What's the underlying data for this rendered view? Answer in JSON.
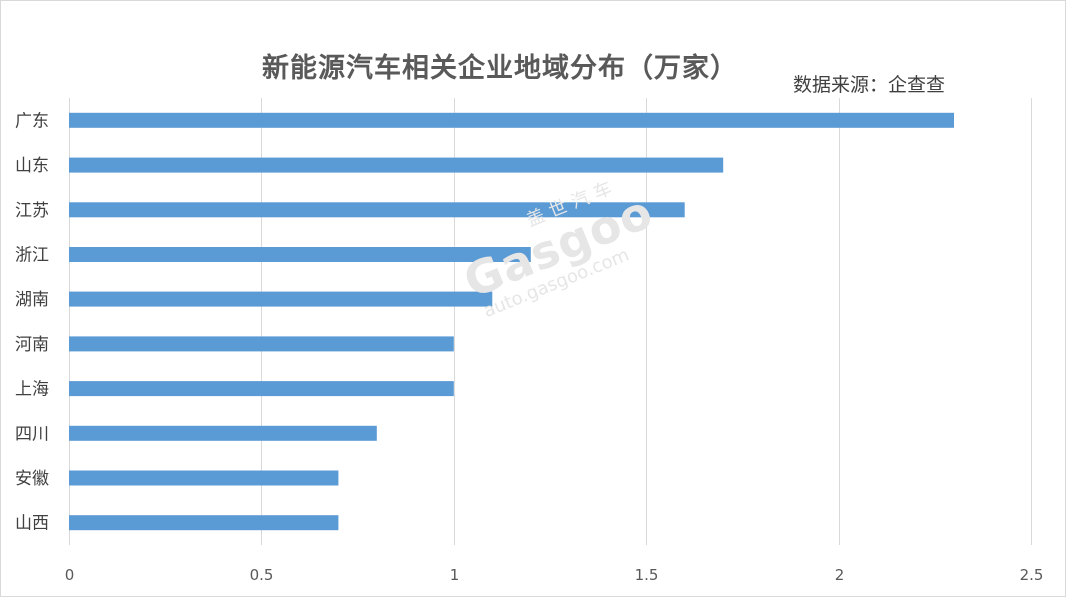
{
  "chart_data": {
    "type": "bar",
    "orientation": "horizontal",
    "title": "新能源汽车相关企业地域分布（万家）",
    "source": "数据来源：企查查",
    "categories": [
      "广东",
      "山东",
      "江苏",
      "浙江",
      "湖南",
      "河南",
      "上海",
      "四川",
      "安徽",
      "山西"
    ],
    "values": [
      2.3,
      1.7,
      1.6,
      1.2,
      1.1,
      1.0,
      1.0,
      0.8,
      0.7,
      0.7
    ],
    "xlim": [
      0,
      2.5
    ],
    "xticks": [
      "0",
      "0.5",
      "1",
      "1.5",
      "2",
      "2.5"
    ],
    "xtick_values": [
      0,
      0.5,
      1,
      1.5,
      2,
      2.5
    ],
    "grid": true,
    "legend": "none",
    "bar_color": "#5b9bd5",
    "grid_color": "#d9d9d9"
  },
  "watermark": {
    "cn": "盖世汽车",
    "brand": "Gasgoo",
    "url": "auto.gasgoo.com"
  }
}
